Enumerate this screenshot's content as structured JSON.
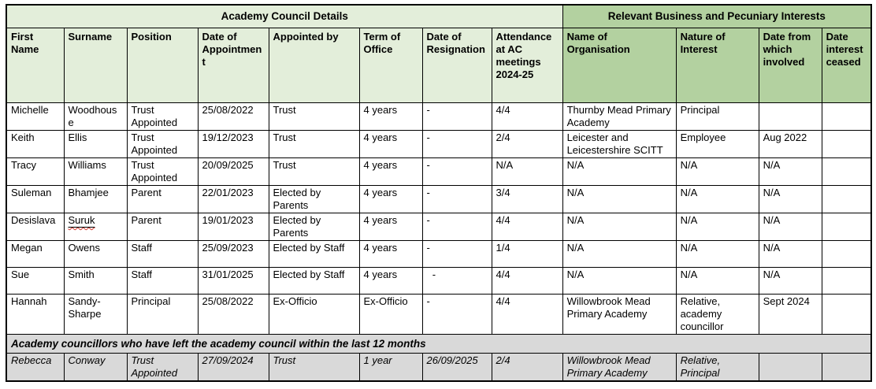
{
  "colors": {
    "section_left_bg": "#e3eeda",
    "section_right_bg": "#b3d1a0",
    "leavers_bg": "#d9d9d9",
    "border": "#000000",
    "spellcheck_underline": "#d63a2f"
  },
  "table": {
    "sections": [
      {
        "label": "Academy Council Details",
        "colspan": 8
      },
      {
        "label": "Relevant Business and Pecuniary Interests",
        "colspan": 4
      }
    ],
    "columns": [
      {
        "label": "First Name",
        "group": "left"
      },
      {
        "label": "Surname",
        "group": "left"
      },
      {
        "label": "Position",
        "group": "left"
      },
      {
        "label": "Date of Appointment",
        "group": "left"
      },
      {
        "label": "Appointed by",
        "group": "left"
      },
      {
        "label": "Term of Office",
        "group": "left"
      },
      {
        "label": "Date of Resignation",
        "group": "left"
      },
      {
        "label": "Attendance at AC meetings 2024-25",
        "group": "left"
      },
      {
        "label": "Name of Organisation",
        "group": "right"
      },
      {
        "label": "Nature of Interest",
        "group": "right"
      },
      {
        "label": "Date from which involved",
        "group": "right"
      },
      {
        "label": "Date interest ceased",
        "group": "right"
      }
    ],
    "rows": [
      {
        "cells": [
          "Michelle",
          "Woodhouse",
          "Trust Appointed",
          "25/08/2022",
          "Trust",
          "4 years",
          "-",
          "4/4",
          "Thurnby Mead Primary Academy",
          "Principal",
          "",
          ""
        ]
      },
      {
        "cells": [
          "Keith",
          "Ellis",
          "Trust Appointed",
          "19/12/2023",
          "Trust",
          "4 years",
          "-",
          "2/4",
          "Leicester and Leicestershire SCITT",
          "Employee",
          "Aug 2022",
          ""
        ]
      },
      {
        "cells": [
          "Tracy",
          "Williams",
          "Trust Appointed",
          "20/09/2025",
          "Trust",
          "4 years",
          "-",
          "N/A",
          "N/A",
          "N/A",
          "N/A",
          ""
        ]
      },
      {
        "cells": [
          "Suleman",
          "Bhamjee",
          "Parent",
          "22/01/2023",
          "Elected by Parents",
          "4 years",
          "-",
          "3/4",
          "N/A",
          "N/A",
          "N/A",
          ""
        ]
      },
      {
        "cells": [
          "Desislava",
          "Suruk",
          "Parent",
          "19/01/2023",
          "Elected by Parents",
          "4 years",
          "-",
          "4/4",
          "N/A",
          "N/A",
          "N/A",
          ""
        ],
        "spellcheck_col": 1
      },
      {
        "cells": [
          "Megan",
          "Owens",
          "Staff",
          "25/09/2023",
          "Elected by Staff",
          "4 years",
          "-",
          "1/4",
          "N/A",
          "N/A",
          "N/A",
          ""
        ]
      },
      {
        "cells": [
          "Sue",
          "Smith",
          "Staff",
          "31/01/2025",
          "Elected by Staff",
          "4 years",
          "  -",
          "4/4",
          "N/A",
          "N/A",
          "N/A",
          ""
        ]
      },
      {
        "cells": [
          "Hannah",
          "Sandy-Sharpe",
          "Principal",
          "25/08/2022",
          "Ex-Officio",
          "Ex-Officio",
          "-",
          "4/4",
          "Willowbrook Mead Primary Academy",
          "Relative, academy councillor",
          "Sept 2024",
          ""
        ]
      }
    ],
    "leavers_header": "Academy councillors who have left the academy council within the last 12 months",
    "leaver_rows": [
      {
        "cells": [
          "Rebecca",
          "Conway",
          "Trust Appointed",
          "27/09/2024",
          "Trust",
          "1 year",
          "26/09/2025",
          "2/4",
          "Willowbrook Mead Primary Academy",
          "Relative, Principal",
          "",
          ""
        ]
      }
    ]
  }
}
